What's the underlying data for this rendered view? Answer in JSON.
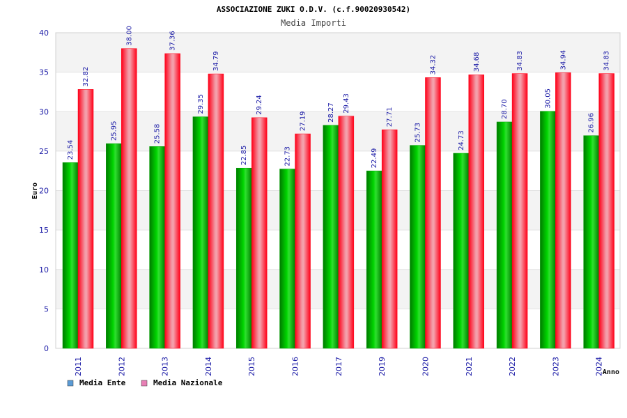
{
  "chart_data": {
    "type": "bar",
    "title": "ASSOCIAZIONE ZUKI O.D.V. (c.f.90020930542)",
    "subtitle": "Media Importi",
    "xlabel": "Anno",
    "ylabel": "Euro",
    "ylim": [
      0,
      40
    ],
    "yticks": [
      0,
      5,
      10,
      15,
      20,
      25,
      30,
      35,
      40
    ],
    "grid": true,
    "legend_position": "bottom-left",
    "categories": [
      "2011",
      "2012",
      "2013",
      "2014",
      "2015",
      "2016",
      "2017",
      "2019",
      "2020",
      "2021",
      "2022",
      "2023",
      "2024"
    ],
    "series": [
      {
        "name": "Media Ente",
        "color": "#00c000",
        "legend_color": "#5b9bd5",
        "values": [
          23.54,
          25.95,
          25.58,
          29.35,
          22.85,
          22.73,
          28.27,
          22.49,
          25.73,
          24.73,
          28.7,
          30.05,
          26.96
        ],
        "labels": [
          "23.54",
          "25.95",
          "25.58",
          "29.35",
          "22.85",
          "22.73",
          "28.27",
          "22.49",
          "25.73",
          "24.73",
          "28.70",
          "30.05",
          "26.96"
        ]
      },
      {
        "name": "Media Nazionale",
        "color": "#e8001c",
        "legend_color": "#e87fb5",
        "values": [
          32.82,
          38.0,
          37.36,
          34.79,
          29.24,
          27.19,
          29.43,
          27.71,
          34.32,
          34.68,
          34.83,
          34.94,
          34.83
        ],
        "labels": [
          "32.82",
          "38.00",
          "37.36",
          "34.79",
          "29.24",
          "27.19",
          "29.43",
          "27.71",
          "34.32",
          "34.68",
          "34.83",
          "34.94",
          "34.83"
        ]
      }
    ]
  }
}
